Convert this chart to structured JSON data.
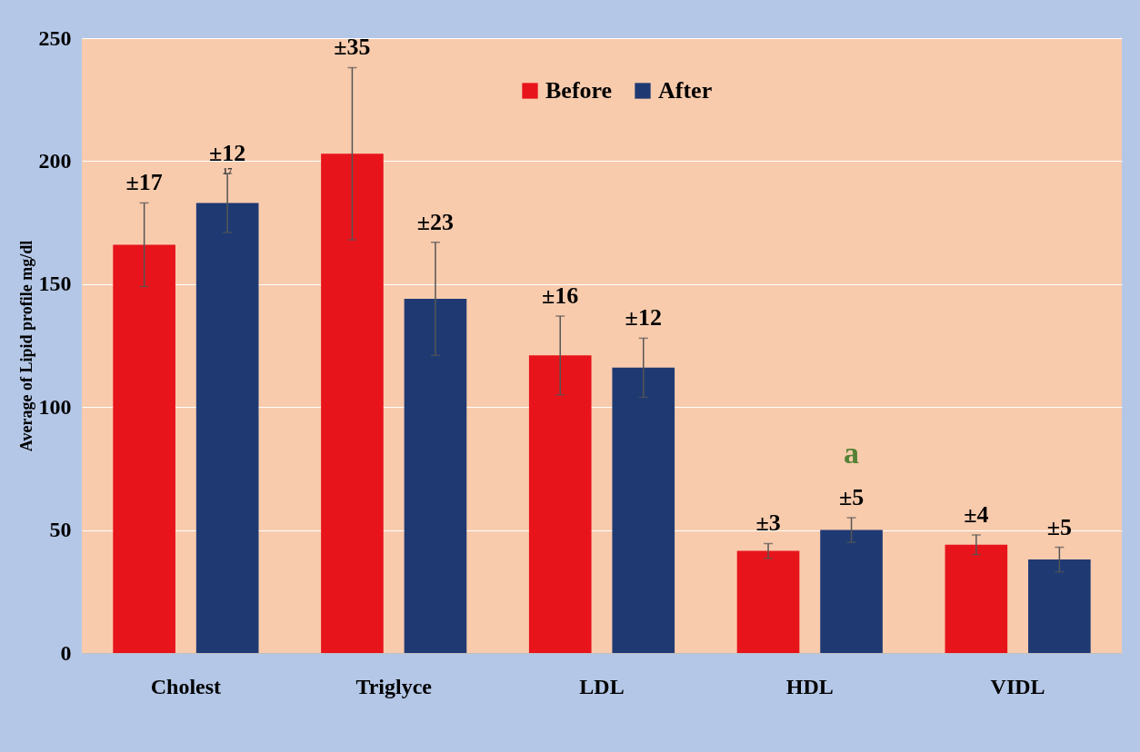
{
  "chart_data": {
    "type": "bar",
    "ylabel": "Average of Lipid profile mg/dl",
    "categories": [
      "Cholest",
      "Triglyce",
      "LDL",
      "HDL",
      "VIDL"
    ],
    "series": [
      {
        "name": "Before",
        "color": "#e8141b",
        "values": [
          166,
          203,
          121,
          41.5,
          44
        ],
        "errors": [
          17,
          35,
          16,
          3,
          4
        ]
      },
      {
        "name": "After",
        "color": "#1f3a73",
        "values": [
          183,
          144,
          116,
          50,
          38
        ],
        "errors": [
          12,
          23,
          12,
          5,
          5
        ]
      }
    ],
    "ylim": [
      0,
      250
    ],
    "yticks": [
      0,
      50,
      100,
      150,
      200,
      250
    ],
    "grid": "y",
    "legend": "top",
    "annotations": [
      "±17",
      "±35",
      "±16",
      "±3",
      "±4",
      "±12",
      "±23",
      "±12",
      "±5",
      "±5",
      "17",
      "a"
    ]
  }
}
